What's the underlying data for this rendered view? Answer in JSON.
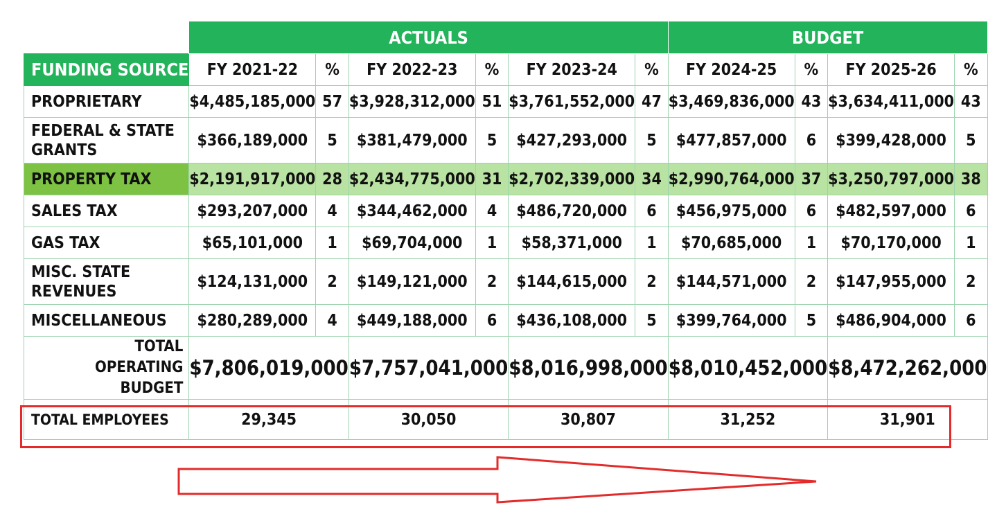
{
  "groups": {
    "actuals": "ACTUALS",
    "budget": "BUDGET"
  },
  "headers": {
    "funding_source": "FUNDING SOURCE",
    "years": [
      "FY 2021-22",
      "FY 2022-23",
      "FY 2023-24",
      "FY 2024-25",
      "FY 2025-26"
    ],
    "pct": "%"
  },
  "rows": [
    {
      "label": "PROPRIETARY",
      "values": [
        "$4,485,185,000",
        "$3,928,312,000",
        "$3,761,552,000",
        "$3,469,836,000",
        "$3,634,411,000"
      ],
      "pcts": [
        "57",
        "51",
        "47",
        "43",
        "43"
      ]
    },
    {
      "label": "FEDERAL & STATE GRANTS",
      "values": [
        "$366,189,000",
        "$381,479,000",
        "$427,293,000",
        "$477,857,000",
        "$399,428,000"
      ],
      "pcts": [
        "5",
        "5",
        "5",
        "6",
        "5"
      ]
    },
    {
      "label": "PROPERTY TAX",
      "values": [
        "$2,191,917,000",
        "$2,434,775,000",
        "$2,702,339,000",
        "$2,990,764,000",
        "$3,250,797,000"
      ],
      "pcts": [
        "28",
        "31",
        "34",
        "37",
        "38"
      ]
    },
    {
      "label": "SALES TAX",
      "values": [
        "$293,207,000",
        "$344,462,000",
        "$486,720,000",
        "$456,975,000",
        "$482,597,000"
      ],
      "pcts": [
        "4",
        "4",
        "6",
        "6",
        "6"
      ]
    },
    {
      "label": "GAS TAX",
      "values": [
        "$65,101,000",
        "$69,704,000",
        "$58,371,000",
        "$70,685,000",
        "$70,170,000"
      ],
      "pcts": [
        "1",
        "1",
        "1",
        "1",
        "1"
      ]
    },
    {
      "label": "MISC. STATE REVENUES",
      "values": [
        "$124,131,000",
        "$149,121,000",
        "$144,615,000",
        "$144,571,000",
        "$147,955,000"
      ],
      "pcts": [
        "2",
        "2",
        "2",
        "2",
        "2"
      ]
    },
    {
      "label": "MISCELLANEOUS",
      "values": [
        "$280,289,000",
        "$449,188,000",
        "$436,108,000",
        "$399,764,000",
        "$486,904,000"
      ],
      "pcts": [
        "4",
        "6",
        "5",
        "5",
        "6"
      ]
    }
  ],
  "total_budget": {
    "label_line1": "TOTAL",
    "label_line2": "OPERATING BUDGET",
    "values": [
      "$7,806,019,000",
      "$7,757,041,000",
      "$8,016,998,000",
      "$8,010,452,000",
      "$8,472,262,000"
    ]
  },
  "total_employees": {
    "label": "TOTAL EMPLOYEES",
    "values": [
      "29,345",
      "30,050",
      "30,807",
      "31,252",
      "31,901"
    ]
  },
  "colors": {
    "green": "#22b35b",
    "highlight": "#b9e3a3",
    "highlight_label": "#7dc242",
    "annotation": "#e32b2b"
  }
}
